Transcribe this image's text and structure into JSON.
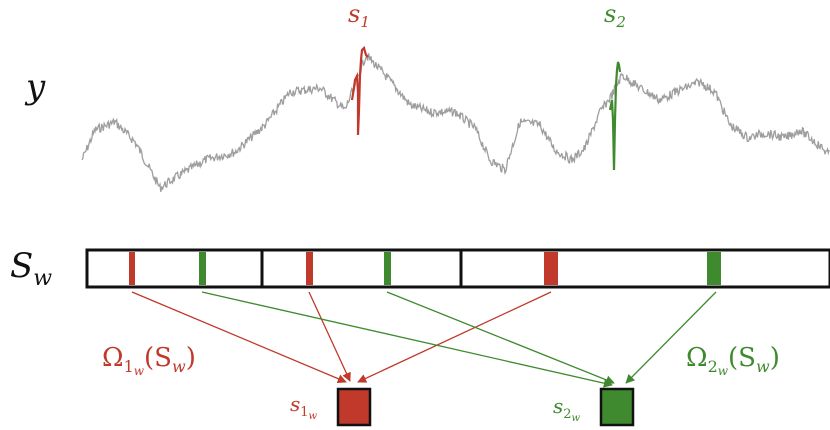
{
  "labels": {
    "signal": "y",
    "spike1": "s",
    "spike1_sub": "1",
    "spike2": "s",
    "spike2_sub": "2",
    "sequence": "S",
    "sequence_sub": "w",
    "omega1_main": "Ω",
    "omega1_sub": "1",
    "omega1_subsub": "w",
    "omega1_arg": "(S",
    "omega1_arg_sub": "w",
    "omega1_close": ")",
    "omega2_main": "Ω",
    "omega2_sub": "2",
    "omega2_subsub": "w",
    "omega2_arg": "(S",
    "omega2_arg_sub": "w",
    "omega2_close": ")",
    "out1": "s",
    "out1_sub": "1",
    "out1_subsub": "w",
    "out2": "s",
    "out2_sub": "2",
    "out2_subsub": "w"
  },
  "colors": {
    "class1": "#c0392b",
    "class2": "#3f8a2e",
    "signal": "#9e9e9e",
    "frame": "#111111"
  }
}
